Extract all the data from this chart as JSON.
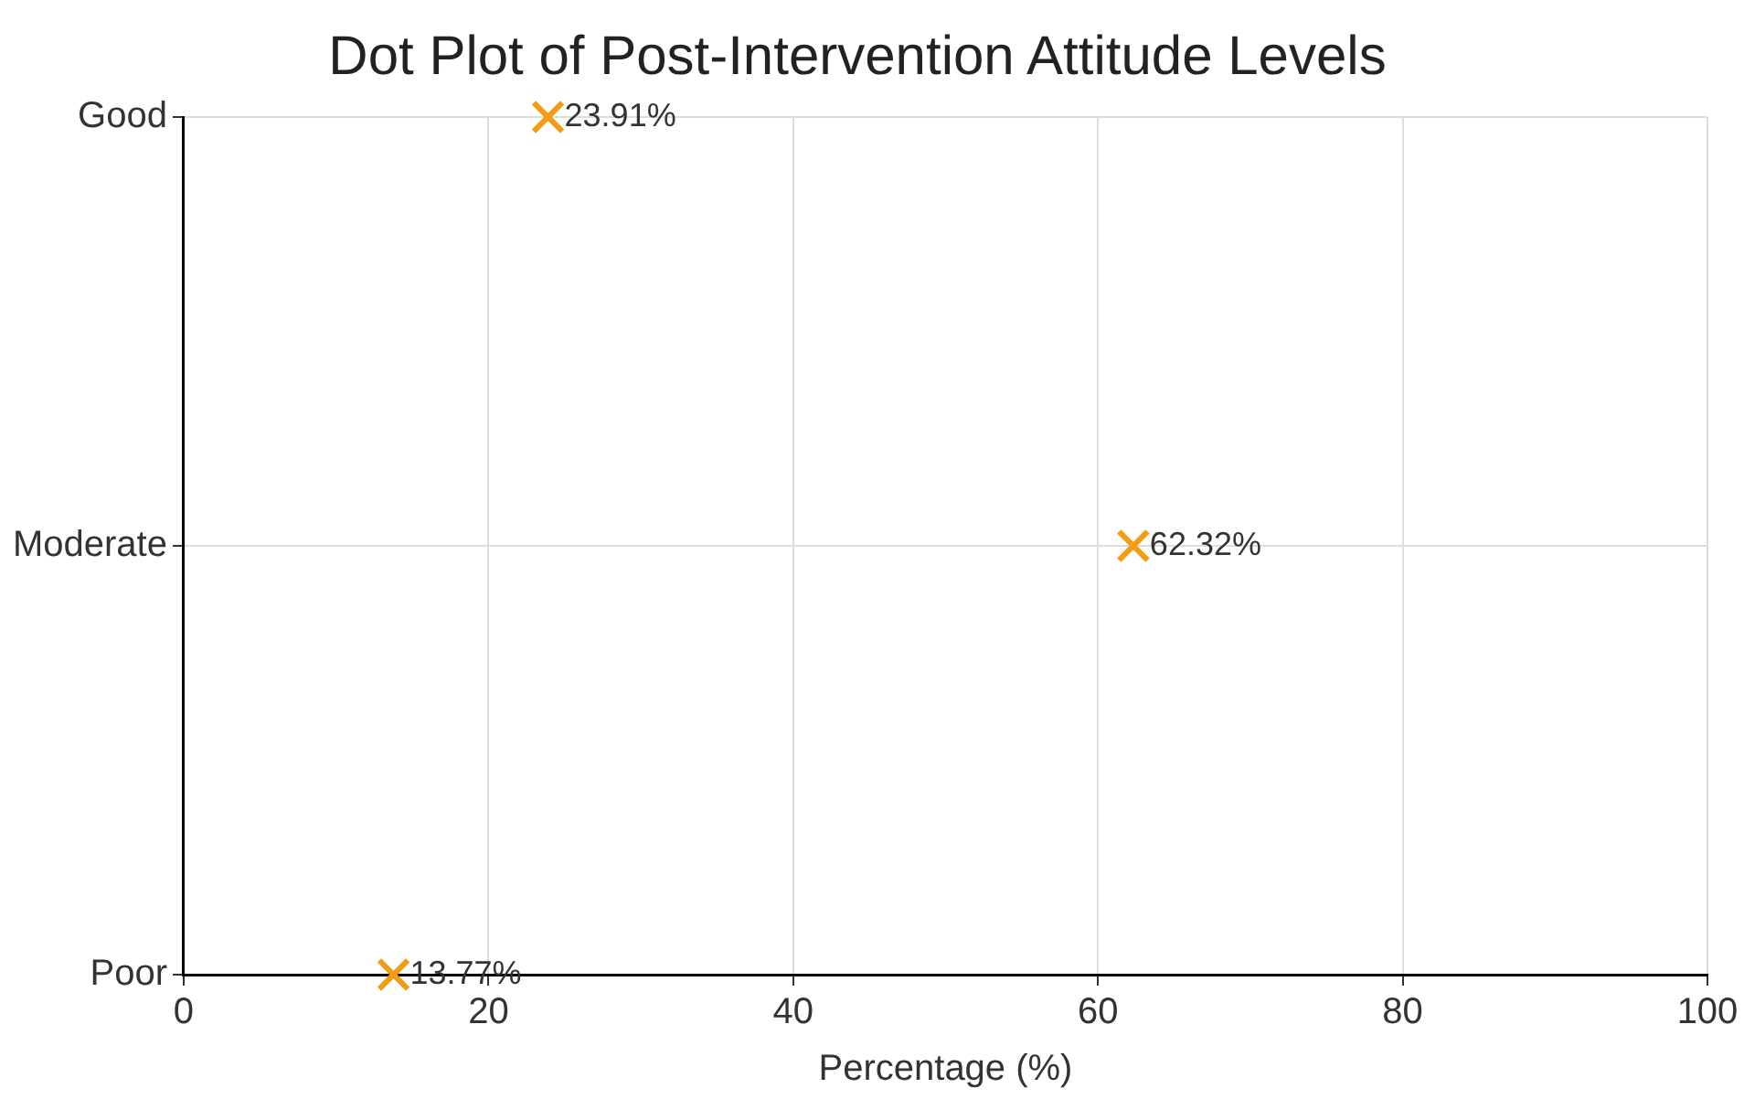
{
  "chart_data": {
    "type": "scatter",
    "title": "Dot Plot of Post-Intervention Attitude Levels",
    "xlabel": "Percentage (%)",
    "orientation": "horizontal",
    "categories": [
      "Good",
      "Moderate",
      "Poor"
    ],
    "values": [
      23.91,
      62.32,
      13.77
    ],
    "value_labels": [
      "23.91%",
      "62.32%",
      "13.77%"
    ],
    "color": "#f39c12",
    "xlim": [
      0,
      100
    ],
    "xticks": [
      0,
      20,
      40,
      60,
      80,
      100
    ],
    "grid": true,
    "marker": "cross"
  }
}
